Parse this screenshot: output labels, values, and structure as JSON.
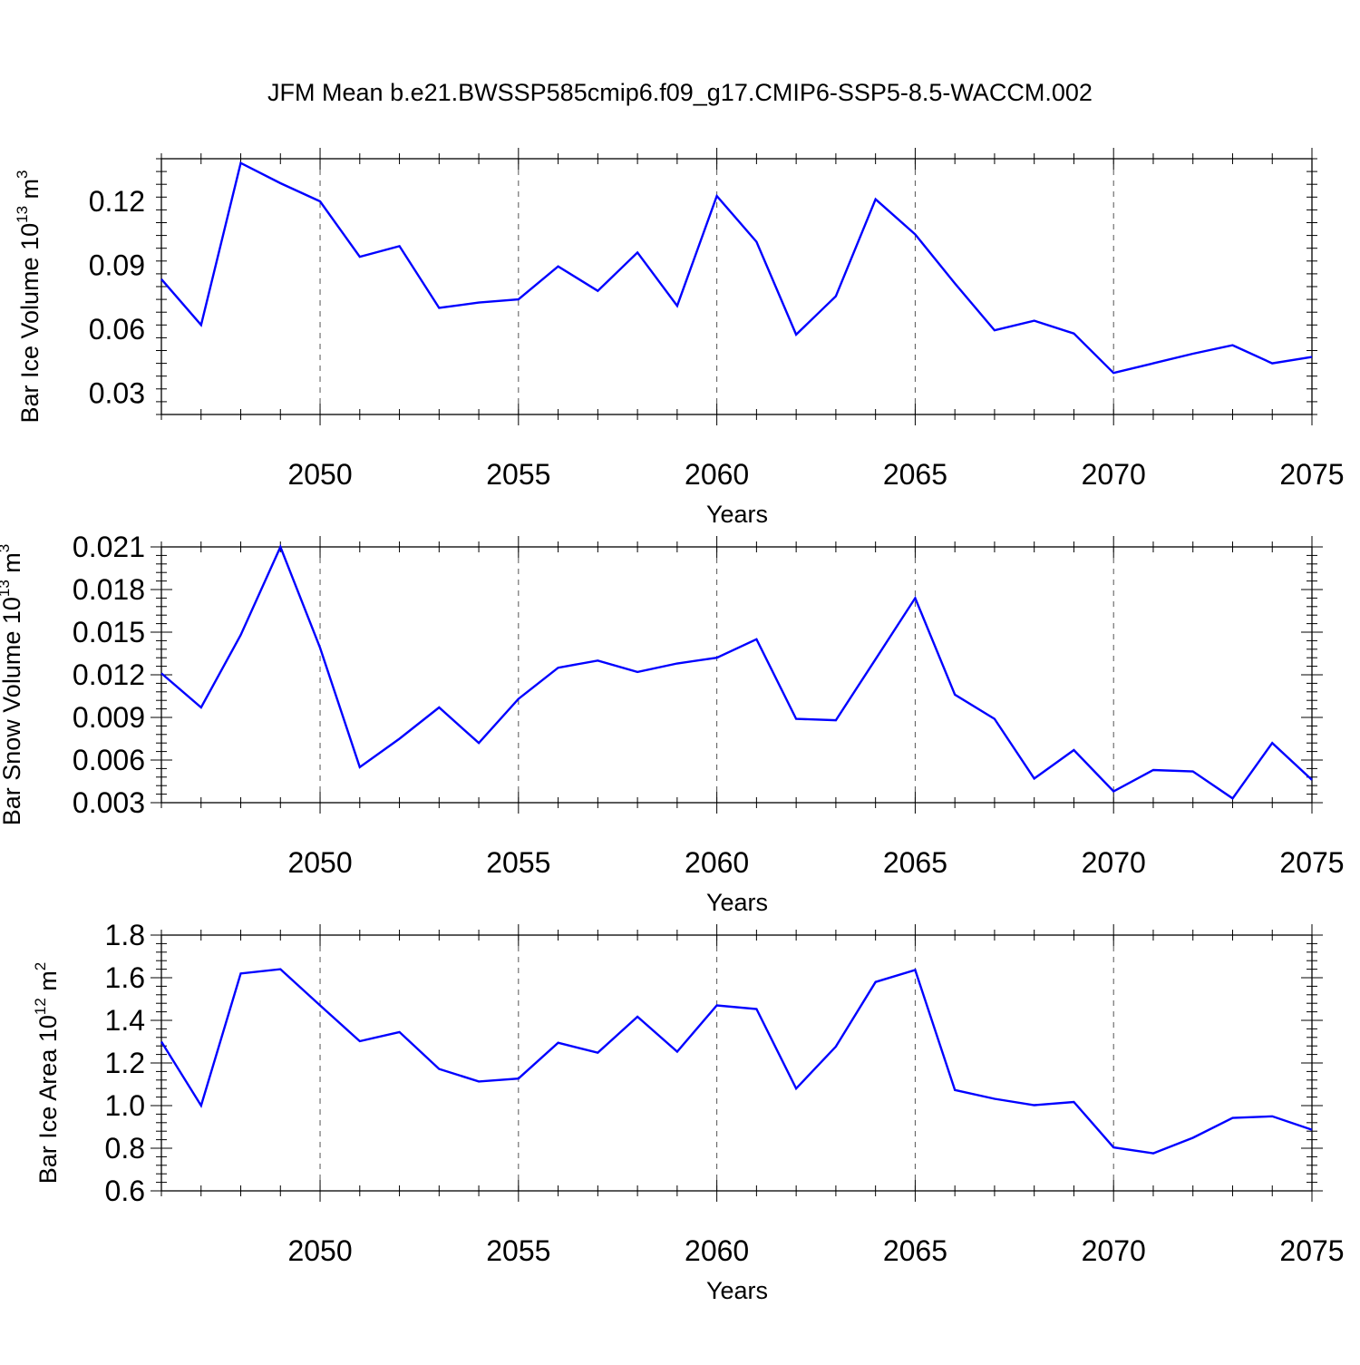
{
  "title": "JFM Mean b.e21.BWSSP585cmip6.f09_g17.CMIP6-SSP5-8.5-WACCM.002",
  "colors": {
    "line": "#0000ff",
    "axis": "#000000",
    "grid": "#555555"
  },
  "chart_data": [
    {
      "type": "line",
      "ylabel": {
        "text": "Bar Ice Volume 10",
        "exponent": "13",
        "unit": " m",
        "unit_exponent": "3"
      },
      "xlabel": "Years",
      "xlim": [
        2046,
        2075
      ],
      "ylim": [
        0.02,
        0.14
      ],
      "yticks": [
        0.03,
        0.06,
        0.09,
        0.12
      ],
      "ytick_labels": [
        "0.03",
        "0.06",
        "0.09",
        "0.12"
      ],
      "xticks": [
        2050,
        2055,
        2060,
        2065,
        2070,
        2075
      ],
      "xtick_labels": [
        "2050",
        "2055",
        "2060",
        "2065",
        "2070",
        "2075"
      ],
      "grid": "vertical dashed at major x ticks",
      "x": [
        2046,
        2047,
        2048,
        2049,
        2050,
        2051,
        2052,
        2053,
        2054,
        2055,
        2056,
        2057,
        2058,
        2059,
        2060,
        2061,
        2062,
        2063,
        2064,
        2065,
        2066,
        2067,
        2068,
        2069,
        2070,
        2071,
        2072,
        2073,
        2074,
        2075
      ],
      "y": [
        0.0835,
        0.062,
        0.138,
        0.1285,
        0.12,
        0.094,
        0.099,
        0.07,
        0.0725,
        0.074,
        0.0895,
        0.078,
        0.096,
        0.071,
        0.1225,
        0.101,
        0.0575,
        0.0755,
        0.121,
        0.1045,
        0.0815,
        0.0595,
        0.064,
        0.058,
        0.0395,
        0.044,
        0.0485,
        0.0525,
        0.044,
        0.047
      ]
    },
    {
      "type": "line",
      "ylabel": {
        "text": "Bar Snow Volume 10",
        "exponent": "13",
        "unit": " m",
        "unit_exponent": "3"
      },
      "xlabel": "Years",
      "xlim": [
        2046,
        2075
      ],
      "ylim": [
        0.003,
        0.021
      ],
      "yticks": [
        0.003,
        0.006,
        0.009,
        0.012,
        0.015,
        0.018,
        0.021
      ],
      "ytick_labels": [
        "0.003",
        "0.006",
        "0.009",
        "0.012",
        "0.015",
        "0.018",
        "0.021"
      ],
      "xticks": [
        2050,
        2055,
        2060,
        2065,
        2070,
        2075
      ],
      "xtick_labels": [
        "2050",
        "2055",
        "2060",
        "2065",
        "2070",
        "2075"
      ],
      "grid": "vertical dashed at major x ticks",
      "x": [
        2046,
        2047,
        2048,
        2049,
        2050,
        2051,
        2052,
        2053,
        2054,
        2055,
        2056,
        2057,
        2058,
        2059,
        2060,
        2061,
        2062,
        2063,
        2064,
        2065,
        2066,
        2067,
        2068,
        2069,
        2070,
        2071,
        2072,
        2073,
        2074,
        2075
      ],
      "y": [
        0.0121,
        0.0097,
        0.0148,
        0.021,
        0.0139,
        0.0055,
        0.0075,
        0.0097,
        0.0072,
        0.0103,
        0.0125,
        0.013,
        0.0122,
        0.0128,
        0.0132,
        0.0145,
        0.0089,
        0.0088,
        0.0131,
        0.0174,
        0.0106,
        0.0089,
        0.0047,
        0.0067,
        0.0038,
        0.0053,
        0.0052,
        0.0033,
        0.0072,
        0.0046
      ]
    },
    {
      "type": "line",
      "ylabel": {
        "text": "Bar Ice Area 10",
        "exponent": "12",
        "unit": " m",
        "unit_exponent": "2"
      },
      "xlabel": "Years",
      "xlim": [
        2046,
        2075
      ],
      "ylim": [
        0.6,
        1.8
      ],
      "yticks": [
        0.6,
        0.8,
        1.0,
        1.2,
        1.4,
        1.6,
        1.8
      ],
      "ytick_labels": [
        "0.6",
        "0.8",
        "1.0",
        "1.2",
        "1.4",
        "1.6",
        "1.8"
      ],
      "xticks": [
        2050,
        2055,
        2060,
        2065,
        2070,
        2075
      ],
      "xtick_labels": [
        "2050",
        "2055",
        "2060",
        "2065",
        "2070",
        "2075"
      ],
      "grid": "vertical dashed at major x ticks",
      "x": [
        2046,
        2047,
        2048,
        2049,
        2050,
        2051,
        2052,
        2053,
        2054,
        2055,
        2056,
        2057,
        2058,
        2059,
        2060,
        2061,
        2062,
        2063,
        2064,
        2065,
        2066,
        2067,
        2068,
        2069,
        2070,
        2071,
        2072,
        2073,
        2074,
        2075
      ],
      "y": [
        1.3,
        1.0,
        1.62,
        1.64,
        1.47,
        1.302,
        1.345,
        1.172,
        1.113,
        1.127,
        1.295,
        1.248,
        1.417,
        1.253,
        1.47,
        1.453,
        1.08,
        1.277,
        1.58,
        1.636,
        1.073,
        1.032,
        1.002,
        1.017,
        0.804,
        0.776,
        0.849,
        0.942,
        0.95,
        0.887
      ]
    }
  ]
}
